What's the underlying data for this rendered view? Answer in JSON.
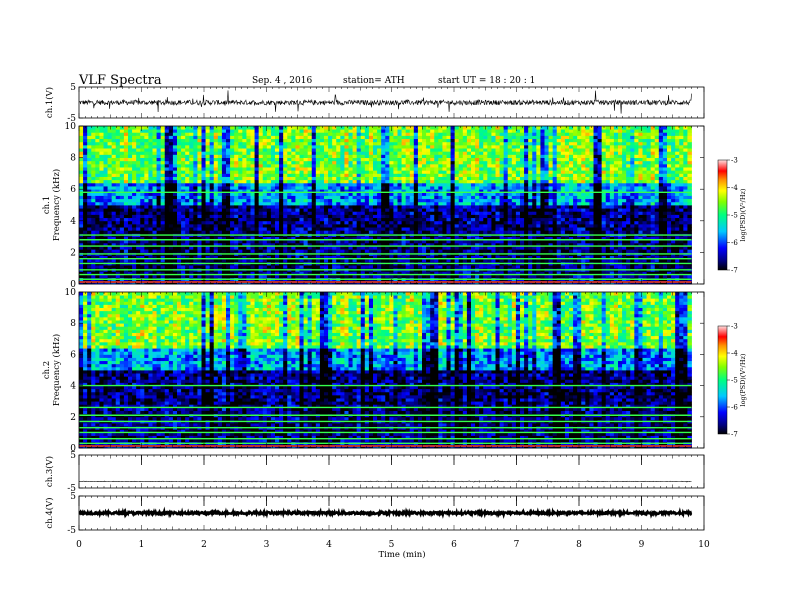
{
  "header": {
    "title": "VLF  Spectra",
    "date": "Sep. 4  , 2016",
    "station": "station= ATH",
    "start_ut": "start  UT  =    18 : 20 : 1"
  },
  "chart_data": [
    {
      "type": "line",
      "panel": "ch1-waveform",
      "ylabel": "ch.1(V)",
      "ylim": [
        -5,
        5
      ],
      "y_ticks": [
        "5",
        "-5"
      ],
      "x_range": [
        0,
        10
      ],
      "data_end_min": 9.8,
      "baseline": 0,
      "noise_amplitude": 0.8,
      "spike_amplitude": 3.5
    },
    {
      "type": "heatmap",
      "panel": "ch1-spectrogram",
      "ylabel": "ch.1\nFrequency  (kHz)",
      "ylabel_top": "ch.1",
      "ylabel_bottom": "Frequency  (kHz)",
      "ylim": [
        0,
        10
      ],
      "y_ticks": [
        "0",
        "2",
        "4",
        "6",
        "8",
        "10"
      ],
      "x_range": [
        0,
        10
      ],
      "data_end_min": 9.8,
      "colorbar": {
        "label": "log(PSD)(V²/Hz)",
        "range": [
          -7,
          -3
        ],
        "ticks": [
          "-3",
          "-4",
          "-5",
          "-6",
          "-7"
        ]
      },
      "description_levels": {
        "low_freq": -6.2,
        "mid_band_0.5_5kHz": -6.5,
        "high_freq_above_6kHz": -4.3
      },
      "persistent_lines_khz": [
        0.3,
        0.6,
        0.9,
        1.3,
        1.6,
        1.9,
        2.4,
        2.8,
        3.1,
        5.8
      ]
    },
    {
      "type": "heatmap",
      "panel": "ch2-spectrogram",
      "ylabel": "ch.2\nFrequency  (kHz)",
      "ylabel_top": "ch.2",
      "ylabel_bottom": "Frequency  (kHz)",
      "ylim": [
        0,
        10
      ],
      "y_ticks": [
        "0",
        "2",
        "4",
        "6",
        "8",
        "10"
      ],
      "x_range": [
        0,
        10
      ],
      "data_end_min": 9.8,
      "colorbar": {
        "label": "log(PSD)(V²/Hz)",
        "range": [
          -7,
          -3
        ],
        "ticks": [
          "-3",
          "-4",
          "-5",
          "-6",
          "-7"
        ]
      },
      "description_levels": {
        "low_freq": -6.2,
        "mid_band_0.5_5kHz": -6.5,
        "high_freq_above_6kHz": -4.3
      },
      "persistent_lines_khz": [
        0.3,
        0.6,
        1.0,
        1.3,
        1.7,
        2.1,
        2.6,
        4.0
      ]
    },
    {
      "type": "line",
      "panel": "ch3-waveform",
      "ylabel": "ch.3(V)",
      "ylim": [
        -5,
        5
      ],
      "y_ticks": [
        "5",
        "-5"
      ],
      "x_range": [
        0,
        10
      ],
      "data_end_min": 9.8,
      "baseline": -3,
      "noise_amplitude": 0.05,
      "spike_amplitude": 0.3
    },
    {
      "type": "line",
      "panel": "ch4-waveform",
      "ylabel": "ch.4(V)",
      "ylim": [
        -5,
        5
      ],
      "y_ticks": [
        "5",
        "-5"
      ],
      "x_range": [
        0,
        10
      ],
      "data_end_min": 9.8,
      "baseline": 0,
      "noise_amplitude": 0.35,
      "spike_amplitude": 0.4
    }
  ],
  "x_axis": {
    "label": "Time  (min)",
    "ticks": [
      "0",
      "1",
      "2",
      "3",
      "4",
      "5",
      "6",
      "7",
      "8",
      "9",
      "10"
    ],
    "range": [
      0,
      10
    ]
  }
}
